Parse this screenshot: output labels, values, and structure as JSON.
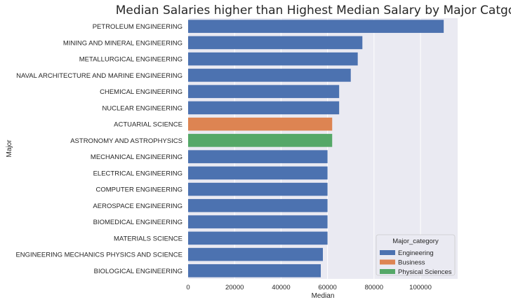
{
  "chart_data": {
    "type": "bar",
    "orientation": "horizontal",
    "title": "Median Salaries higher than Highest Median Salary by Major Catgory",
    "xlabel": "Median",
    "ylabel": "Major",
    "xlim": [
      0,
      116000
    ],
    "xticks": [
      0,
      20000,
      40000,
      60000,
      80000,
      100000
    ],
    "grid": true,
    "legend_position": "bottom-right",
    "legend_title": "Major_category",
    "series": [
      {
        "name": "Engineering",
        "color": "#4c72b0"
      },
      {
        "name": "Business",
        "color": "#dd8452"
      },
      {
        "name": "Physical Sciences",
        "color": "#55a868"
      }
    ],
    "categories": [
      "PETROLEUM ENGINEERING",
      "MINING AND MINERAL ENGINEERING",
      "METALLURGICAL ENGINEERING",
      "NAVAL ARCHITECTURE AND MARINE ENGINEERING",
      "CHEMICAL ENGINEERING",
      "NUCLEAR ENGINEERING",
      "ACTUARIAL SCIENCE",
      "ASTRONOMY AND ASTROPHYSICS",
      "MECHANICAL ENGINEERING",
      "ELECTRICAL ENGINEERING",
      "COMPUTER ENGINEERING",
      "AEROSPACE ENGINEERING",
      "BIOMEDICAL ENGINEERING",
      "MATERIALS SCIENCE",
      "ENGINEERING MECHANICS PHYSICS AND SCIENCE",
      "BIOLOGICAL ENGINEERING"
    ],
    "values": [
      110000,
      75000,
      73000,
      70000,
      65000,
      65000,
      62000,
      62000,
      60000,
      60000,
      60000,
      60000,
      60000,
      60000,
      58000,
      57100
    ],
    "category_series": [
      "Engineering",
      "Engineering",
      "Engineering",
      "Engineering",
      "Engineering",
      "Engineering",
      "Business",
      "Physical Sciences",
      "Engineering",
      "Engineering",
      "Engineering",
      "Engineering",
      "Engineering",
      "Engineering",
      "Engineering",
      "Engineering"
    ],
    "colors": {
      "background": "#eaeaf2",
      "grid": "#ffffff"
    }
  }
}
